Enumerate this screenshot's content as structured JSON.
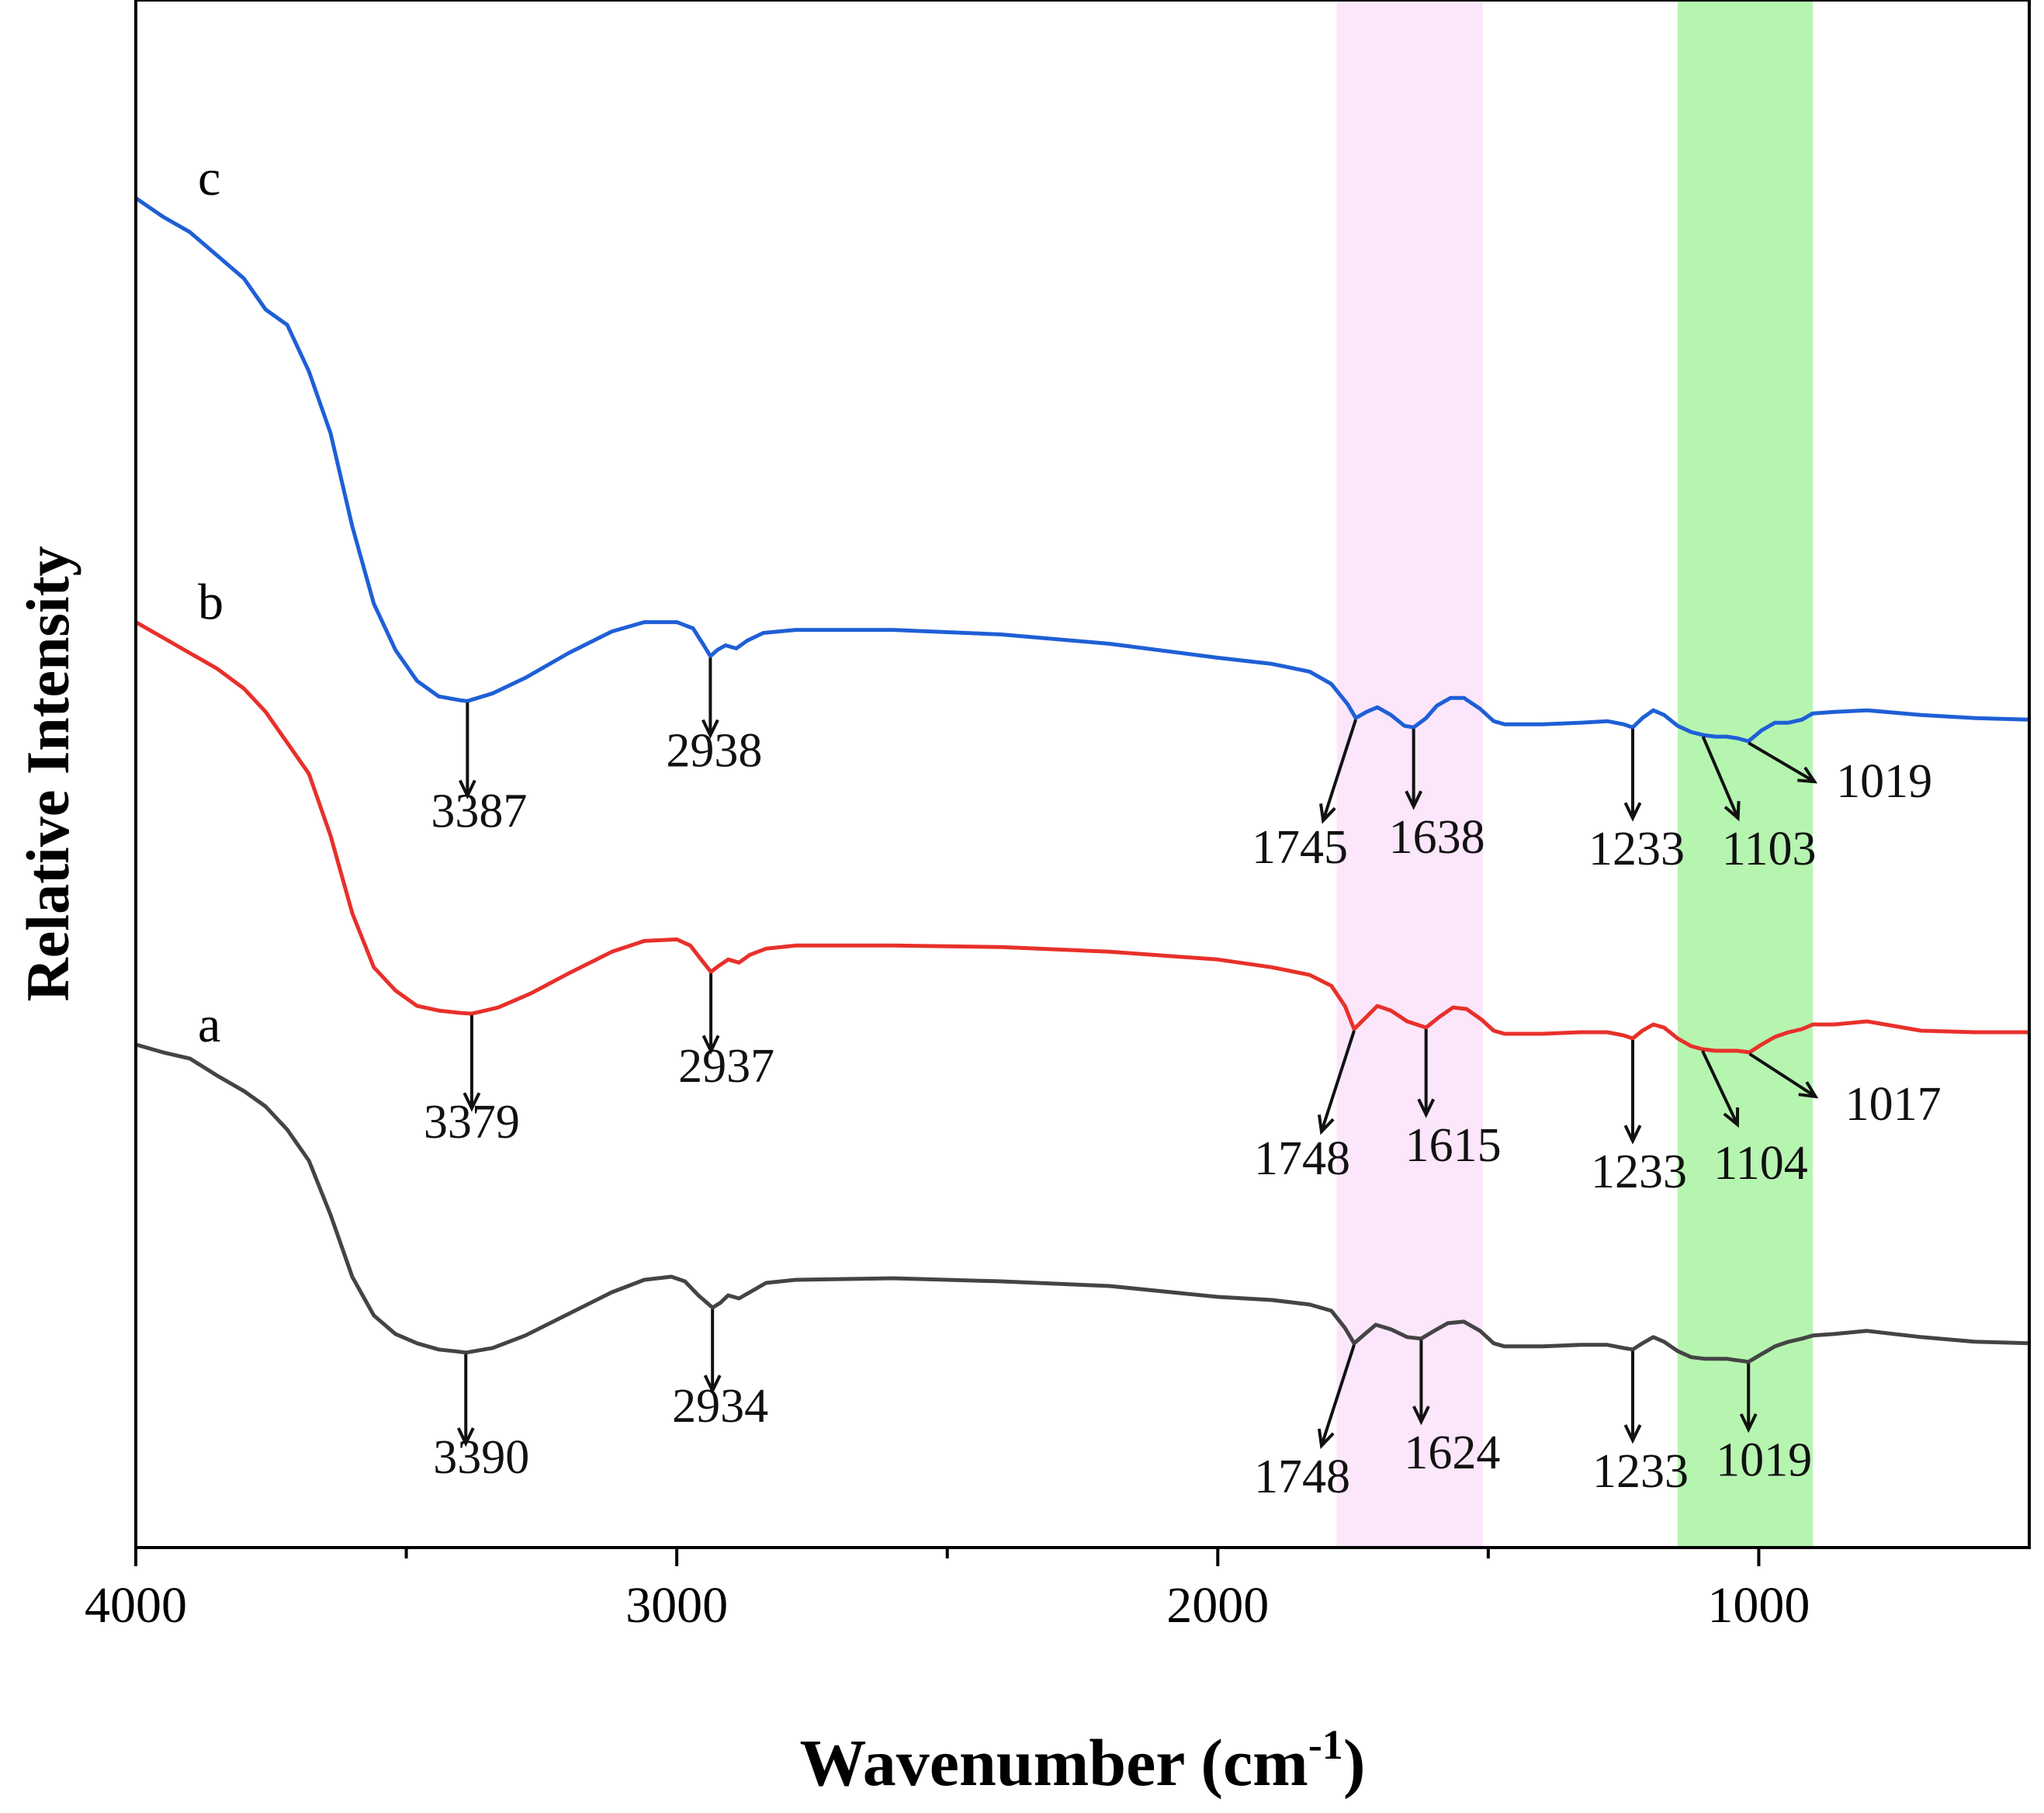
{
  "chart_data": {
    "type": "line",
    "title": "",
    "xlabel": "Wavenumber (cm",
    "xlabel_sup": "-1",
    "xlabel_close": ")",
    "ylabel": "Relative Intensity",
    "xlim": [
      4000,
      500
    ],
    "ylim": [
      0,
      1
    ],
    "x_ticks": [
      4000,
      3000,
      2000,
      1000
    ],
    "x_tick_labels": [
      "4000",
      "3000",
      "2000",
      "1000"
    ],
    "x_minor_ticks": [
      3500,
      2500,
      1500
    ],
    "highlight_bands": [
      {
        "from": 1780,
        "to": 1510,
        "color": "#fbe6fb"
      },
      {
        "from": 1150,
        "to": 900,
        "color": "#b6f5b0"
      }
    ],
    "series": [
      {
        "name": "c",
        "color": "#1f5fd6",
        "points": [
          [
            4000,
            0.872
          ],
          [
            3950,
            0.86
          ],
          [
            3900,
            0.85
          ],
          [
            3850,
            0.835
          ],
          [
            3800,
            0.82
          ],
          [
            3760,
            0.8
          ],
          [
            3720,
            0.79
          ],
          [
            3680,
            0.76
          ],
          [
            3640,
            0.72
          ],
          [
            3600,
            0.66
          ],
          [
            3560,
            0.61
          ],
          [
            3520,
            0.58
          ],
          [
            3480,
            0.56
          ],
          [
            3440,
            0.55
          ],
          [
            3400,
            0.5475
          ],
          [
            3387,
            0.547
          ],
          [
            3340,
            0.552
          ],
          [
            3280,
            0.562
          ],
          [
            3200,
            0.578
          ],
          [
            3120,
            0.592
          ],
          [
            3060,
            0.598
          ],
          [
            3000,
            0.598
          ],
          [
            2970,
            0.594
          ],
          [
            2950,
            0.583
          ],
          [
            2938,
            0.576
          ],
          [
            2925,
            0.58
          ],
          [
            2910,
            0.583
          ],
          [
            2890,
            0.581
          ],
          [
            2870,
            0.586
          ],
          [
            2840,
            0.591
          ],
          [
            2780,
            0.593
          ],
          [
            2600,
            0.593
          ],
          [
            2400,
            0.59
          ],
          [
            2200,
            0.584
          ],
          [
            2000,
            0.575
          ],
          [
            1900,
            0.571
          ],
          [
            1830,
            0.566
          ],
          [
            1790,
            0.558
          ],
          [
            1760,
            0.545
          ],
          [
            1745,
            0.536
          ],
          [
            1725,
            0.54
          ],
          [
            1705,
            0.543
          ],
          [
            1680,
            0.538
          ],
          [
            1655,
            0.531
          ],
          [
            1638,
            0.53
          ],
          [
            1615,
            0.536
          ],
          [
            1595,
            0.544
          ],
          [
            1570,
            0.549
          ],
          [
            1545,
            0.549
          ],
          [
            1515,
            0.542
          ],
          [
            1490,
            0.534
          ],
          [
            1470,
            0.532
          ],
          [
            1400,
            0.532
          ],
          [
            1330,
            0.533
          ],
          [
            1280,
            0.534
          ],
          [
            1250,
            0.532
          ],
          [
            1233,
            0.53
          ],
          [
            1215,
            0.536
          ],
          [
            1195,
            0.541
          ],
          [
            1175,
            0.538
          ],
          [
            1150,
            0.531
          ],
          [
            1125,
            0.527
          ],
          [
            1103,
            0.525
          ],
          [
            1080,
            0.524
          ],
          [
            1060,
            0.524
          ],
          [
            1040,
            0.523
          ],
          [
            1019,
            0.521
          ],
          [
            995,
            0.528
          ],
          [
            970,
            0.533
          ],
          [
            945,
            0.533
          ],
          [
            920,
            0.535
          ],
          [
            900,
            0.539
          ],
          [
            860,
            0.54
          ],
          [
            800,
            0.541
          ],
          [
            700,
            0.538
          ],
          [
            600,
            0.536
          ],
          [
            500,
            0.535
          ]
        ],
        "peaks": [
          {
            "label": "3387",
            "x": 3387
          },
          {
            "label": "2938",
            "x": 2938
          },
          {
            "label": "1745",
            "x": 1745
          },
          {
            "label": "1638",
            "x": 1638
          },
          {
            "label": "1233",
            "x": 1233
          },
          {
            "label": "1103",
            "x": 1103
          },
          {
            "label": "1019",
            "x": 1019
          }
        ]
      },
      {
        "name": "b",
        "color": "#e8302a",
        "points": [
          [
            4000,
            0.598
          ],
          [
            3950,
            0.588
          ],
          [
            3900,
            0.578
          ],
          [
            3850,
            0.568
          ],
          [
            3800,
            0.555
          ],
          [
            3760,
            0.54
          ],
          [
            3720,
            0.52
          ],
          [
            3680,
            0.5
          ],
          [
            3640,
            0.46
          ],
          [
            3600,
            0.41
          ],
          [
            3560,
            0.375
          ],
          [
            3520,
            0.36
          ],
          [
            3480,
            0.35
          ],
          [
            3440,
            0.347
          ],
          [
            3400,
            0.3455
          ],
          [
            3379,
            0.345
          ],
          [
            3330,
            0.349
          ],
          [
            3270,
            0.358
          ],
          [
            3200,
            0.371
          ],
          [
            3120,
            0.385
          ],
          [
            3060,
            0.392
          ],
          [
            3000,
            0.393
          ],
          [
            2975,
            0.389
          ],
          [
            2955,
            0.38
          ],
          [
            2937,
            0.372
          ],
          [
            2922,
            0.376
          ],
          [
            2905,
            0.38
          ],
          [
            2885,
            0.378
          ],
          [
            2865,
            0.383
          ],
          [
            2835,
            0.387
          ],
          [
            2780,
            0.389
          ],
          [
            2600,
            0.389
          ],
          [
            2400,
            0.388
          ],
          [
            2200,
            0.385
          ],
          [
            2000,
            0.38
          ],
          [
            1900,
            0.375
          ],
          [
            1830,
            0.37
          ],
          [
            1790,
            0.363
          ],
          [
            1765,
            0.35
          ],
          [
            1748,
            0.335
          ],
          [
            1728,
            0.342
          ],
          [
            1705,
            0.35
          ],
          [
            1680,
            0.347
          ],
          [
            1650,
            0.34
          ],
          [
            1615,
            0.336
          ],
          [
            1590,
            0.343
          ],
          [
            1565,
            0.349
          ],
          [
            1540,
            0.348
          ],
          [
            1512,
            0.341
          ],
          [
            1490,
            0.334
          ],
          [
            1470,
            0.332
          ],
          [
            1400,
            0.332
          ],
          [
            1330,
            0.333
          ],
          [
            1280,
            0.333
          ],
          [
            1250,
            0.331
          ],
          [
            1233,
            0.329
          ],
          [
            1215,
            0.334
          ],
          [
            1195,
            0.338
          ],
          [
            1175,
            0.336
          ],
          [
            1150,
            0.329
          ],
          [
            1125,
            0.324
          ],
          [
            1104,
            0.322
          ],
          [
            1080,
            0.321
          ],
          [
            1060,
            0.321
          ],
          [
            1040,
            0.321
          ],
          [
            1017,
            0.32
          ],
          [
            995,
            0.325
          ],
          [
            970,
            0.33
          ],
          [
            945,
            0.333
          ],
          [
            920,
            0.335
          ],
          [
            900,
            0.338
          ],
          [
            860,
            0.338
          ],
          [
            800,
            0.34
          ],
          [
            700,
            0.334
          ],
          [
            600,
            0.333
          ],
          [
            500,
            0.333
          ]
        ],
        "peaks": [
          {
            "label": "3379",
            "x": 3379
          },
          {
            "label": "2937",
            "x": 2937
          },
          {
            "label": "1748",
            "x": 1748
          },
          {
            "label": "1615",
            "x": 1615
          },
          {
            "label": "1233",
            "x": 1233
          },
          {
            "label": "1104",
            "x": 1104
          },
          {
            "label": "1017",
            "x": 1017
          }
        ]
      },
      {
        "name": "a",
        "color": "#444444",
        "points": [
          [
            4000,
            0.325
          ],
          [
            3950,
            0.32
          ],
          [
            3900,
            0.316
          ],
          [
            3850,
            0.305
          ],
          [
            3800,
            0.295
          ],
          [
            3760,
            0.285
          ],
          [
            3720,
            0.27
          ],
          [
            3680,
            0.25
          ],
          [
            3640,
            0.215
          ],
          [
            3600,
            0.175
          ],
          [
            3560,
            0.15
          ],
          [
            3520,
            0.138
          ],
          [
            3480,
            0.132
          ],
          [
            3440,
            0.128
          ],
          [
            3400,
            0.1265
          ],
          [
            3390,
            0.126
          ],
          [
            3340,
            0.129
          ],
          [
            3280,
            0.137
          ],
          [
            3200,
            0.151
          ],
          [
            3120,
            0.165
          ],
          [
            3060,
            0.173
          ],
          [
            3010,
            0.175
          ],
          [
            2985,
            0.172
          ],
          [
            2960,
            0.163
          ],
          [
            2934,
            0.155
          ],
          [
            2920,
            0.158
          ],
          [
            2905,
            0.163
          ],
          [
            2885,
            0.161
          ],
          [
            2865,
            0.165
          ],
          [
            2835,
            0.171
          ],
          [
            2780,
            0.173
          ],
          [
            2600,
            0.174
          ],
          [
            2400,
            0.172
          ],
          [
            2200,
            0.169
          ],
          [
            2000,
            0.162
          ],
          [
            1900,
            0.16
          ],
          [
            1830,
            0.157
          ],
          [
            1790,
            0.153
          ],
          [
            1765,
            0.142
          ],
          [
            1748,
            0.132
          ],
          [
            1728,
            0.138
          ],
          [
            1708,
            0.144
          ],
          [
            1680,
            0.141
          ],
          [
            1650,
            0.136
          ],
          [
            1624,
            0.135
          ],
          [
            1600,
            0.14
          ],
          [
            1575,
            0.145
          ],
          [
            1545,
            0.146
          ],
          [
            1515,
            0.14
          ],
          [
            1490,
            0.132
          ],
          [
            1470,
            0.13
          ],
          [
            1400,
            0.13
          ],
          [
            1330,
            0.131
          ],
          [
            1280,
            0.131
          ],
          [
            1250,
            0.129
          ],
          [
            1233,
            0.128
          ],
          [
            1215,
            0.132
          ],
          [
            1195,
            0.136
          ],
          [
            1175,
            0.133
          ],
          [
            1150,
            0.127
          ],
          [
            1125,
            0.123
          ],
          [
            1100,
            0.122
          ],
          [
            1080,
            0.122
          ],
          [
            1060,
            0.122
          ],
          [
            1040,
            0.121
          ],
          [
            1019,
            0.12
          ],
          [
            995,
            0.125
          ],
          [
            970,
            0.13
          ],
          [
            945,
            0.133
          ],
          [
            920,
            0.135
          ],
          [
            900,
            0.137
          ],
          [
            860,
            0.138
          ],
          [
            800,
            0.14
          ],
          [
            700,
            0.136
          ],
          [
            600,
            0.133
          ],
          [
            500,
            0.132
          ]
        ],
        "peaks": [
          {
            "label": "3390",
            "x": 3390
          },
          {
            "label": "2934",
            "x": 2934
          },
          {
            "label": "1748",
            "x": 1748
          },
          {
            "label": "1624",
            "x": 1624
          },
          {
            "label": "1233",
            "x": 1233
          },
          {
            "label": "1019",
            "x": 1019
          }
        ]
      }
    ]
  }
}
